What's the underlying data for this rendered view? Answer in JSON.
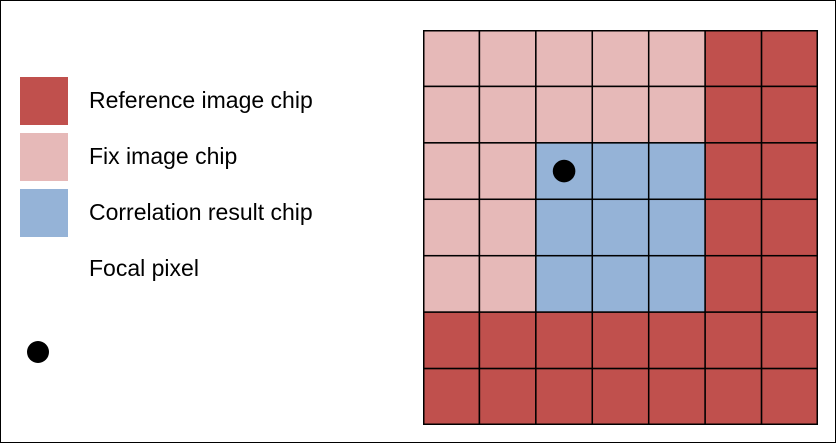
{
  "legend": {
    "items": [
      {
        "key": "reference",
        "label": "Reference image chip",
        "color": "#c0504d"
      },
      {
        "key": "fix",
        "label": "Fix image chip",
        "color": "#e6b9b8"
      },
      {
        "key": "correlation",
        "label": "Correlation result chip",
        "color": "#95b3d7"
      },
      {
        "key": "focal",
        "label": "Focal pixel",
        "color": "#000000",
        "icon": "focal-pixel-dot-icon"
      }
    ]
  },
  "grid": {
    "rows": 7,
    "cols": 7,
    "cells": [
      [
        "fix",
        "fix",
        "fix",
        "fix",
        "fix",
        "reference",
        "reference"
      ],
      [
        "fix",
        "fix",
        "fix",
        "fix",
        "fix",
        "reference",
        "reference"
      ],
      [
        "fix",
        "fix",
        "correlation",
        "correlation",
        "correlation",
        "reference",
        "reference"
      ],
      [
        "fix",
        "fix",
        "correlation",
        "correlation",
        "correlation",
        "reference",
        "reference"
      ],
      [
        "fix",
        "fix",
        "correlation",
        "correlation",
        "correlation",
        "reference",
        "reference"
      ],
      [
        "reference",
        "reference",
        "reference",
        "reference",
        "reference",
        "reference",
        "reference"
      ],
      [
        "reference",
        "reference",
        "reference",
        "reference",
        "reference",
        "reference",
        "reference"
      ]
    ],
    "focal_pixel": {
      "row": 2,
      "col": 2
    },
    "line_color": "#000000"
  }
}
